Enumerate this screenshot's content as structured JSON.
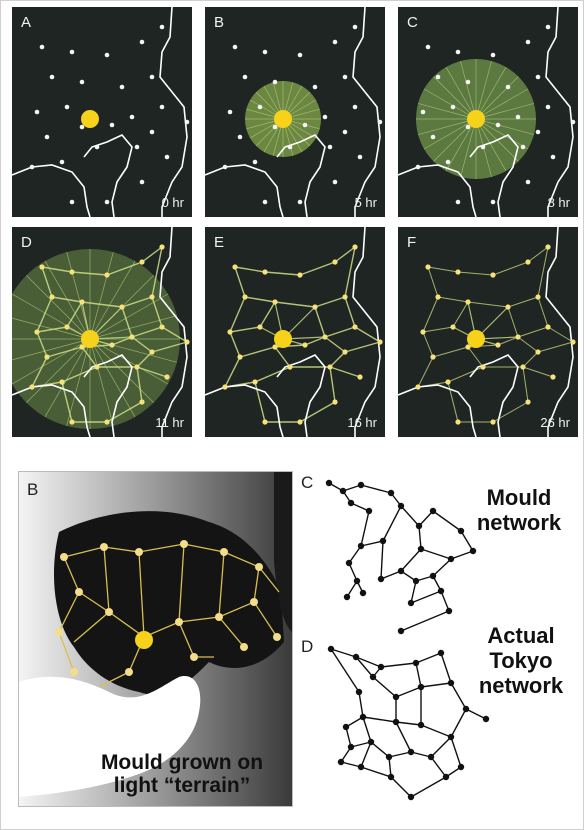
{
  "timelapse": {
    "panels": [
      {
        "label": "A",
        "time": "0 hr"
      },
      {
        "label": "B",
        "time": "5 hr"
      },
      {
        "label": "C",
        "time": "8 hr"
      },
      {
        "label": "D",
        "time": "11 hr"
      },
      {
        "label": "E",
        "time": "16 hr"
      },
      {
        "label": "F",
        "time": "26 hr"
      }
    ]
  },
  "terrain": {
    "label": "B",
    "caption_line1": "Mould grown on",
    "caption_line2": "light “terrain”"
  },
  "mould_network": {
    "label": "C",
    "title_line1": "Mould",
    "title_line2": "network"
  },
  "tokyo_network": {
    "label": "D",
    "title_line1": "Actual",
    "title_line2": "Tokyo",
    "title_line3": "network"
  },
  "colors": {
    "panel_bg": "#1f2523",
    "food": "#f6d21a",
    "mould": "#cfe08a",
    "coast": "#ffffff"
  }
}
